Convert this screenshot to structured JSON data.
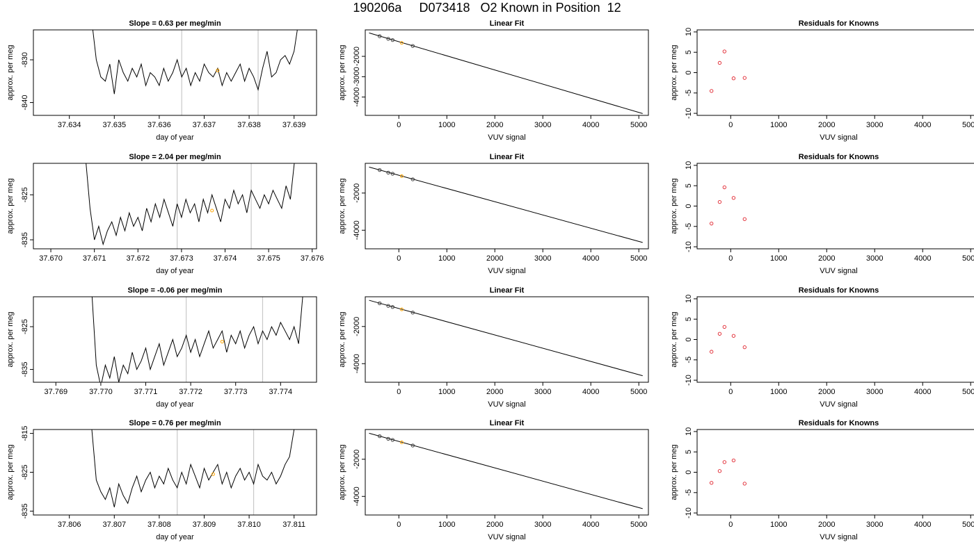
{
  "page": {
    "title": "190206a     D073418   O2 Known in Position  12"
  },
  "style": {
    "trace_color": "#000000",
    "marker_line_color": "#c8c8c8",
    "highlight_color": "#ffa500",
    "residual_color": "#e0202a",
    "axis_color": "#000000"
  },
  "chart_data": [
    {
      "type": "line",
      "title": "Slope =  0.63  per meg/min",
      "xlabel": "day of year",
      "ylabel": "approx. per meg",
      "xticks": [
        "37.634",
        "37.635",
        "37.636",
        "37.637",
        "37.638",
        "37.639"
      ],
      "yticks": [
        "-830",
        "-840"
      ],
      "xlim": [
        37.6332,
        37.6395
      ],
      "ylim": [
        -843,
        -823
      ],
      "x": [
        37.6345,
        37.6346,
        37.6347,
        37.6348,
        37.6349,
        37.635,
        37.6351,
        37.6352,
        37.6353,
        37.6354,
        37.6355,
        37.6356,
        37.6357,
        37.6358,
        37.6359,
        37.636,
        37.6361,
        37.6362,
        37.6363,
        37.6364,
        37.6365,
        37.6366,
        37.6367,
        37.6368,
        37.6369,
        37.637,
        37.6371,
        37.6372,
        37.6373,
        37.6374,
        37.6375,
        37.6376,
        37.6377,
        37.6378,
        37.6379,
        37.638,
        37.6381,
        37.6382,
        37.6383,
        37.6384,
        37.6385,
        37.6386,
        37.6387,
        37.6388,
        37.6389,
        37.639,
        37.6391
      ],
      "y": [
        -821,
        -830,
        -834,
        -835,
        -831,
        -838,
        -830,
        -833,
        -835,
        -832,
        -834,
        -831,
        -836,
        -833,
        -834,
        -836,
        -832,
        -835,
        -833,
        -830,
        -834,
        -832,
        -836,
        -833,
        -835,
        -831,
        -833,
        -834,
        -832,
        -836,
        -833,
        -835,
        -833,
        -831,
        -835,
        -832,
        -834,
        -837,
        -832,
        -828,
        -834,
        -833,
        -830,
        -829,
        -831,
        -828,
        -821
      ],
      "vlines": [
        37.6365,
        37.6382
      ],
      "highlight": [
        [
          37.6373,
          -832.5
        ]
      ]
    },
    {
      "type": "scatter",
      "title": "Linear Fit",
      "xlabel": "VUV signal",
      "ylabel": "approx. per meg",
      "xticks": [
        "0",
        "1000",
        "2000",
        "3000",
        "4000",
        "5000"
      ],
      "yticks": [
        "-2000",
        "-3000",
        "-4000"
      ],
      "xlim": [
        -700,
        5200
      ],
      "ylim": [
        -4900,
        -700
      ],
      "fit": [
        [
          -620,
          -850
        ],
        [
          5080,
          -4810
        ]
      ],
      "points": [
        [
          -400,
          -1010
        ],
        [
          -220,
          -1140
        ],
        [
          -130,
          -1200
        ],
        [
          290,
          -1490
        ]
      ],
      "highlight": [
        [
          60,
          -1340
        ]
      ]
    },
    {
      "type": "scatter",
      "title": "Residuals for Knowns",
      "xlabel": "VUV signal",
      "ylabel": "approx. per meg",
      "xticks": [
        "0",
        "1000",
        "2000",
        "3000",
        "4000",
        "5000"
      ],
      "yticks": [
        "10",
        "5",
        "0",
        "-5",
        "-10"
      ],
      "xlim": [
        -700,
        5200
      ],
      "ylim": [
        -10.5,
        10.5
      ],
      "points": [
        [
          -400,
          -4.5
        ],
        [
          -230,
          2.4
        ],
        [
          -130,
          5.2
        ],
        [
          60,
          -1.4
        ],
        [
          290,
          -1.3
        ]
      ]
    },
    {
      "type": "line",
      "title": "Slope =  2.04  per meg/min",
      "xlabel": "day of year",
      "ylabel": "approx. per meg",
      "xticks": [
        "37.670",
        "37.671",
        "37.672",
        "37.673",
        "37.674",
        "37.675",
        "37.676"
      ],
      "yticks": [
        "-825",
        "-835"
      ],
      "xlim": [
        37.6696,
        37.6761
      ],
      "ylim": [
        -837,
        -818
      ],
      "x": [
        37.6708,
        37.6709,
        37.671,
        37.6711,
        37.6712,
        37.6713,
        37.6714,
        37.6715,
        37.6716,
        37.6717,
        37.6718,
        37.6719,
        37.672,
        37.6721,
        37.6722,
        37.6723,
        37.6724,
        37.6725,
        37.6726,
        37.6727,
        37.6728,
        37.6729,
        37.673,
        37.6731,
        37.6732,
        37.6733,
        37.6734,
        37.6735,
        37.6736,
        37.6737,
        37.6738,
        37.6739,
        37.674,
        37.6741,
        37.6742,
        37.6743,
        37.6744,
        37.6745,
        37.6746,
        37.6747,
        37.6748,
        37.6749,
        37.675,
        37.6751,
        37.6752,
        37.6753,
        37.6754,
        37.6755,
        37.6756
      ],
      "y": [
        -817,
        -828,
        -835,
        -832,
        -836,
        -833,
        -831,
        -834,
        -830,
        -833,
        -829,
        -832,
        -830,
        -833,
        -828,
        -831,
        -827,
        -830,
        -826,
        -829,
        -832,
        -827,
        -830,
        -826,
        -829,
        -827,
        -831,
        -826,
        -829,
        -825,
        -828,
        -831,
        -826,
        -828,
        -824,
        -827,
        -825,
        -829,
        -824,
        -826,
        -828,
        -825,
        -827,
        -824,
        -826,
        -828,
        -823,
        -826,
        -817
      ],
      "vlines": [
        37.6729,
        37.6746
      ],
      "highlight": [
        [
          37.6737,
          -828.5
        ]
      ]
    },
    {
      "type": "scatter",
      "title": "Linear Fit",
      "xlabel": "VUV signal",
      "ylabel": "approx. per meg",
      "xticks": [
        "0",
        "1000",
        "2000",
        "3000",
        "4000",
        "5000"
      ],
      "yticks": [
        "-2000",
        "-4000"
      ],
      "xlim": [
        -700,
        5200
      ],
      "ylim": [
        -5000,
        -400
      ],
      "fit": [
        [
          -620,
          -600
        ],
        [
          5080,
          -4660
        ]
      ],
      "points": [
        [
          -400,
          -760
        ],
        [
          -220,
          -900
        ],
        [
          -130,
          -960
        ],
        [
          290,
          -1260
        ]
      ],
      "highlight": [
        [
          60,
          -1090
        ]
      ]
    },
    {
      "type": "scatter",
      "title": "Residuals for Knowns",
      "xlabel": "VUV signal",
      "ylabel": "approx. per meg",
      "xticks": [
        "0",
        "1000",
        "2000",
        "3000",
        "4000",
        "5000"
      ],
      "yticks": [
        "10",
        "5",
        "0",
        "-5",
        "-10"
      ],
      "xlim": [
        -700,
        5200
      ],
      "ylim": [
        -10.5,
        10.5
      ],
      "points": [
        [
          -400,
          -4.3
        ],
        [
          -230,
          1.0
        ],
        [
          -130,
          4.6
        ],
        [
          60,
          2.0
        ],
        [
          290,
          -3.2
        ]
      ]
    },
    {
      "type": "line",
      "title": "Slope =  -0.06  per meg/min",
      "xlabel": "day of year",
      "ylabel": "approx. per meg",
      "xticks": [
        "37.769",
        "37.770",
        "37.771",
        "37.772",
        "37.773",
        "37.774"
      ],
      "yticks": [
        "-825",
        "-835"
      ],
      "xlim": [
        37.7685,
        37.7748
      ],
      "ylim": [
        -838,
        -818
      ],
      "x": [
        37.7698,
        37.7699,
        37.77,
        37.7701,
        37.7702,
        37.7703,
        37.7704,
        37.7705,
        37.7706,
        37.7707,
        37.7708,
        37.7709,
        37.771,
        37.7711,
        37.7712,
        37.7713,
        37.7714,
        37.7715,
        37.7716,
        37.7717,
        37.7718,
        37.7719,
        37.772,
        37.7721,
        37.7722,
        37.7723,
        37.7724,
        37.7725,
        37.7726,
        37.7727,
        37.7728,
        37.7729,
        37.773,
        37.7731,
        37.7732,
        37.7733,
        37.7734,
        37.7735,
        37.7736,
        37.7737,
        37.7738,
        37.7739,
        37.774,
        37.7741,
        37.7742,
        37.7743,
        37.7744,
        37.7745
      ],
      "y": [
        -817,
        -834,
        -839,
        -834,
        -837,
        -832,
        -838,
        -834,
        -836,
        -831,
        -835,
        -833,
        -830,
        -835,
        -832,
        -829,
        -834,
        -831,
        -828,
        -832,
        -830,
        -827,
        -831,
        -828,
        -832,
        -829,
        -826,
        -830,
        -828,
        -826,
        -831,
        -827,
        -829,
        -826,
        -830,
        -827,
        -825,
        -829,
        -826,
        -828,
        -825,
        -827,
        -824,
        -826,
        -828,
        -825,
        -829,
        -817
      ],
      "vlines": [
        37.7719,
        37.7736
      ],
      "highlight": [
        [
          37.7727,
          -828.5
        ]
      ]
    },
    {
      "type": "scatter",
      "title": "Linear Fit",
      "xlabel": "VUV signal",
      "ylabel": "approx. per meg",
      "xticks": [
        "0",
        "1000",
        "2000",
        "3000",
        "4000",
        "5000"
      ],
      "yticks": [
        "-2000",
        "-4000"
      ],
      "xlim": [
        -700,
        5200
      ],
      "ylim": [
        -5000,
        -400
      ],
      "fit": [
        [
          -620,
          -590
        ],
        [
          5080,
          -4650
        ]
      ],
      "points": [
        [
          -400,
          -750
        ],
        [
          -220,
          -890
        ],
        [
          -130,
          -950
        ],
        [
          290,
          -1250
        ]
      ],
      "highlight": [
        [
          60,
          -1080
        ]
      ]
    },
    {
      "type": "scatter",
      "title": "Residuals for Knowns",
      "xlabel": "VUV signal",
      "ylabel": "approx. per meg",
      "xticks": [
        "0",
        "1000",
        "2000",
        "3000",
        "4000",
        "5000"
      ],
      "yticks": [
        "10",
        "5",
        "0",
        "-5",
        "-10"
      ],
      "xlim": [
        -700,
        5200
      ],
      "ylim": [
        -10.5,
        10.5
      ],
      "points": [
        [
          -400,
          -3.0
        ],
        [
          -230,
          1.4
        ],
        [
          -130,
          3.1
        ],
        [
          60,
          0.9
        ],
        [
          290,
          -1.9
        ]
      ]
    },
    {
      "type": "line",
      "title": "Slope =  0.76  per meg/min",
      "xlabel": "day of year",
      "ylabel": "approx. per meg",
      "xticks": [
        "37.806",
        "37.807",
        "37.808",
        "37.809",
        "37.810",
        "37.811"
      ],
      "yticks": [
        "-815",
        "-825",
        "-835"
      ],
      "xlim": [
        37.8052,
        37.8115
      ],
      "ylim": [
        -836,
        -814
      ],
      "x": [
        37.8065,
        37.8066,
        37.8067,
        37.8068,
        37.8069,
        37.807,
        37.8071,
        37.8072,
        37.8073,
        37.8074,
        37.8075,
        37.8076,
        37.8077,
        37.8078,
        37.8079,
        37.808,
        37.8081,
        37.8082,
        37.8083,
        37.8084,
        37.8085,
        37.8086,
        37.8087,
        37.8088,
        37.8089,
        37.809,
        37.8091,
        37.8092,
        37.8093,
        37.8094,
        37.8095,
        37.8096,
        37.8097,
        37.8098,
        37.8099,
        37.81,
        37.8101,
        37.8102,
        37.8103,
        37.8104,
        37.8105,
        37.8106,
        37.8107,
        37.8108,
        37.8109,
        37.811
      ],
      "y": [
        -814,
        -827,
        -830,
        -832,
        -829,
        -834,
        -828,
        -831,
        -833,
        -829,
        -826,
        -830,
        -827,
        -825,
        -829,
        -826,
        -828,
        -824,
        -827,
        -829,
        -825,
        -828,
        -823,
        -826,
        -829,
        -824,
        -827,
        -825,
        -823,
        -828,
        -825,
        -829,
        -826,
        -824,
        -827,
        -825,
        -828,
        -823,
        -826,
        -827,
        -825,
        -828,
        -826,
        -823,
        -821,
        -814
      ],
      "vlines": [
        37.8084,
        37.8101
      ],
      "highlight": [
        [
          37.8092,
          -825.5
        ]
      ]
    },
    {
      "type": "scatter",
      "title": "Linear Fit",
      "xlabel": "VUV signal",
      "ylabel": "approx. per meg",
      "xticks": [
        "0",
        "1000",
        "2000",
        "3000",
        "4000",
        "5000"
      ],
      "yticks": [
        "-2000",
        "-4000"
      ],
      "xlim": [
        -700,
        5200
      ],
      "ylim": [
        -5000,
        -400
      ],
      "fit": [
        [
          -620,
          -600
        ],
        [
          5080,
          -4660
        ]
      ],
      "points": [
        [
          -400,
          -760
        ],
        [
          -220,
          -900
        ],
        [
          -130,
          -960
        ],
        [
          290,
          -1260
        ]
      ],
      "highlight": [
        [
          60,
          -1090
        ]
      ]
    },
    {
      "type": "scatter",
      "title": "Residuals for Knowns",
      "xlabel": "VUV signal",
      "ylabel": "approx. per meg",
      "xticks": [
        "0",
        "1000",
        "2000",
        "3000",
        "4000",
        "5000"
      ],
      "yticks": [
        "10",
        "5",
        "0",
        "-5",
        "-10"
      ],
      "xlim": [
        -700,
        5200
      ],
      "ylim": [
        -10.5,
        10.5
      ],
      "points": [
        [
          -400,
          -2.6
        ],
        [
          -230,
          0.3
        ],
        [
          -130,
          2.5
        ],
        [
          60,
          2.9
        ],
        [
          290,
          -2.8
        ]
      ]
    }
  ]
}
